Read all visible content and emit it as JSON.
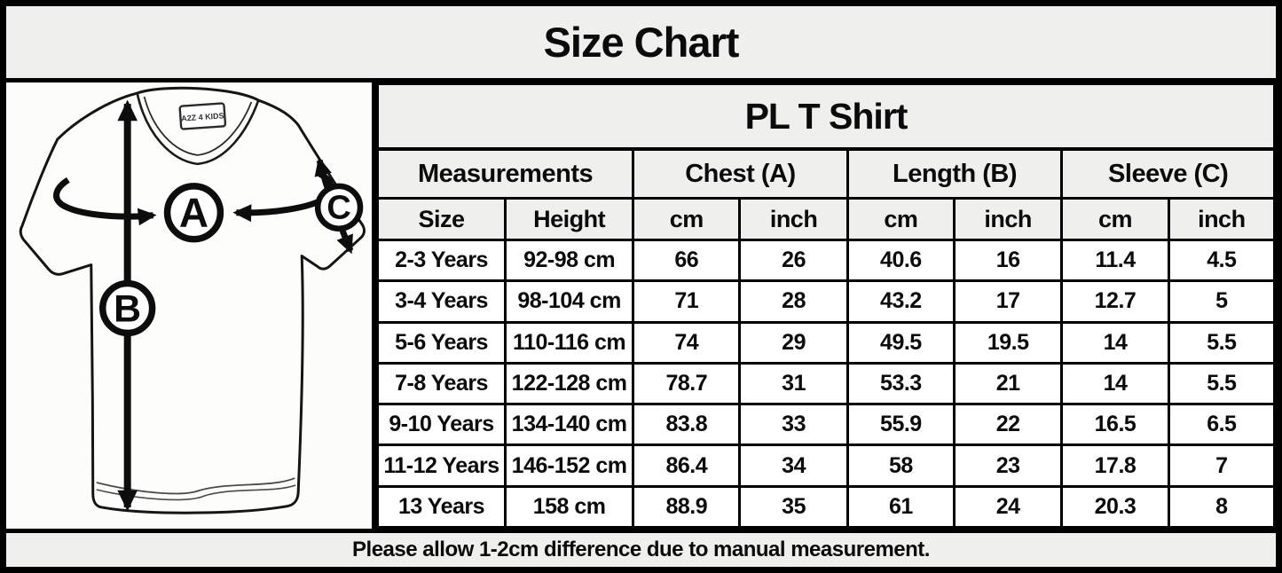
{
  "title": "Size Chart",
  "product": {
    "name": "PL T Shirt"
  },
  "diagram": {
    "tag_text": "A2Z 4 KIDS",
    "labels": {
      "chest": "A",
      "length": "B",
      "sleeve": "C"
    }
  },
  "table": {
    "group_headers": [
      "Measurements",
      "Chest (A)",
      "Length (B)",
      "Sleeve (C)"
    ],
    "sub_headers": [
      "Size",
      "Height",
      "cm",
      "inch",
      "cm",
      "inch",
      "cm",
      "inch"
    ],
    "rows": [
      [
        "2-3 Years",
        "92-98 cm",
        "66",
        "26",
        "40.6",
        "16",
        "11.4",
        "4.5"
      ],
      [
        "3-4 Years",
        "98-104 cm",
        "71",
        "28",
        "43.2",
        "17",
        "12.7",
        "5"
      ],
      [
        "5-6 Years",
        "110-116 cm",
        "74",
        "29",
        "49.5",
        "19.5",
        "14",
        "5.5"
      ],
      [
        "7-8 Years",
        "122-128 cm",
        "78.7",
        "31",
        "53.3",
        "21",
        "14",
        "5.5"
      ],
      [
        "9-10 Years",
        "134-140 cm",
        "83.8",
        "33",
        "55.9",
        "22",
        "16.5",
        "6.5"
      ],
      [
        "11-12 Years",
        "146-152 cm",
        "86.4",
        "34",
        "58",
        "23",
        "17.8",
        "7"
      ],
      [
        "13 Years",
        "158 cm",
        "88.9",
        "35",
        "61",
        "24",
        "20.3",
        "8"
      ]
    ]
  },
  "footer_note": "Please allow 1-2cm difference due to manual measurement.",
  "colors": {
    "band_bg": "#efefed",
    "cell_bg": "#ffffff",
    "border": "#000000",
    "text": "#0b0b0b"
  }
}
